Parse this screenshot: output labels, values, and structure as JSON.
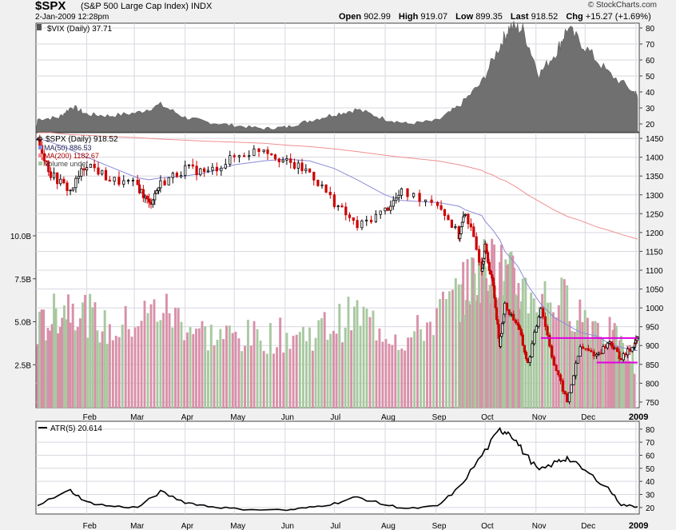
{
  "header": {
    "symbol": "$SPX",
    "description": "(S&P 500 Large Cap Index)",
    "exchange": "INDX",
    "datetime": "2-Jan-2009 12:28pm",
    "watermark": "© StockCharts.com",
    "open_label": "Open",
    "open": "902.99",
    "high_label": "High",
    "high": "919.07",
    "low_label": "Low",
    "low": "899.35",
    "last_label": "Last",
    "last": "918.52",
    "chg_label": "Chg",
    "chg": "+15.27 (+1.69%)"
  },
  "colors": {
    "up": "#000000",
    "down": "#cc0000",
    "ma50": "#8a8ad8",
    "ma200": "#f09090",
    "vol_up": "#a8c8a0",
    "vol_down": "#d890a8",
    "vix_fill": "#707070",
    "resistance": "#e000e0",
    "grid": "#d8d8e0",
    "plot_bg": "#ffffff"
  },
  "chart_data": [
    {
      "type": "area",
      "panel": "vix",
      "legend": "$VIX (Daily) 37.71",
      "y_ticks": [
        20,
        30,
        40,
        50,
        60,
        70,
        80
      ],
      "ylim": [
        15,
        83
      ],
      "x": [
        "2008-01-02",
        "2008-01-15",
        "2008-01-23",
        "2008-02-01",
        "2008-02-15",
        "2008-03-03",
        "2008-03-17",
        "2008-04-01",
        "2008-04-15",
        "2008-05-01",
        "2008-05-19",
        "2008-06-02",
        "2008-06-16",
        "2008-07-01",
        "2008-07-15",
        "2008-08-01",
        "2008-08-15",
        "2008-09-02",
        "2008-09-15",
        "2008-09-29",
        "2008-10-10",
        "2008-10-16",
        "2008-10-24",
        "2008-11-03",
        "2008-11-14",
        "2008-11-20",
        "2008-12-01",
        "2008-12-15",
        "2008-12-31",
        "2009-01-02"
      ],
      "values": [
        23,
        24,
        31,
        26,
        25,
        27,
        32,
        24,
        21,
        19,
        17,
        18,
        22,
        26,
        29,
        23,
        20,
        22,
        31,
        46,
        69,
        81,
        79,
        51,
        66,
        80,
        68,
        52,
        40,
        37.71
      ]
    },
    {
      "type": "line",
      "panel": "price",
      "legend": "$SPX (Daily) 918.52",
      "series": [
        {
          "name": "MA(50) 886.53",
          "kind": "ma50"
        },
        {
          "name": "MA(200) 1182.67",
          "kind": "ma200"
        },
        {
          "name": "Volume undef",
          "kind": "volume"
        }
      ],
      "y_ticks": [
        750,
        800,
        850,
        900,
        950,
        1000,
        1050,
        1100,
        1150,
        1200,
        1250,
        1300,
        1350,
        1400,
        1450
      ],
      "ylim": [
        735,
        1465
      ],
      "x_tick_labels": [
        "Feb",
        "Mar",
        "Apr",
        "May",
        "Jun",
        "Jul",
        "Aug",
        "Sep",
        "Oct",
        "Nov",
        "Dec",
        "2009"
      ],
      "x": [
        "2008-01-02",
        "2008-01-10",
        "2008-01-22",
        "2008-02-01",
        "2008-02-15",
        "2008-03-03",
        "2008-03-10",
        "2008-03-17",
        "2008-04-01",
        "2008-04-15",
        "2008-05-01",
        "2008-05-19",
        "2008-06-02",
        "2008-06-16",
        "2008-07-01",
        "2008-07-15",
        "2008-08-01",
        "2008-08-11",
        "2008-09-02",
        "2008-09-15",
        "2008-09-19",
        "2008-09-29",
        "2008-10-01",
        "2008-10-06",
        "2008-10-10",
        "2008-10-13",
        "2008-10-21",
        "2008-10-27",
        "2008-11-04",
        "2008-11-12",
        "2008-11-20",
        "2008-11-28",
        "2008-12-08",
        "2008-12-16",
        "2008-12-23",
        "2008-12-31",
        "2009-01-02"
      ],
      "close": [
        1447,
        1355,
        1310,
        1385,
        1340,
        1325,
        1275,
        1330,
        1370,
        1360,
        1400,
        1425,
        1385,
        1360,
        1280,
        1215,
        1260,
        1305,
        1280,
        1190,
        1255,
        1105,
        1160,
        1055,
        900,
        1005,
        955,
        850,
        1005,
        850,
        750,
        895,
        875,
        910,
        865,
        903,
        918.52
      ],
      "ma50": [
        1450,
        1440,
        1420,
        1400,
        1375,
        1345,
        1340,
        1345,
        1350,
        1360,
        1380,
        1390,
        1395,
        1390,
        1370,
        1340,
        1300,
        1285,
        1280,
        1270,
        1260,
        1245,
        1230,
        1205,
        1180,
        1150,
        1110,
        1060,
        1010,
        975,
        955,
        935,
        925,
        905,
        895,
        888,
        886.53
      ],
      "ma200": [
        1465,
        1465,
        1460,
        1458,
        1455,
        1452,
        1450,
        1448,
        1445,
        1442,
        1440,
        1437,
        1432,
        1428,
        1422,
        1415,
        1405,
        1400,
        1390,
        1380,
        1376,
        1365,
        1360,
        1352,
        1342,
        1338,
        1318,
        1300,
        1280,
        1260,
        1243,
        1232,
        1215,
        1205,
        1195,
        1185,
        1182.67
      ],
      "resistance": {
        "level": 920,
        "from": "2008-11-04",
        "to": "2009-01-02"
      },
      "support": {
        "level": 855,
        "from": "2008-12-08",
        "to": "2009-01-02"
      }
    },
    {
      "type": "bar",
      "panel": "volume",
      "y_tick_labels": [
        "2.5B",
        "5.0B",
        "7.5B",
        "10.0B"
      ],
      "y_ticks": [
        2.5,
        5.0,
        7.5,
        10.0
      ],
      "ylim": [
        0,
        16
      ],
      "x": [
        "2008-01-02",
        "2008-01-22",
        "2008-02-15",
        "2008-03-17",
        "2008-04-15",
        "2008-05-15",
        "2008-06-16",
        "2008-07-15",
        "2008-08-15",
        "2008-09-15",
        "2008-09-29",
        "2008-10-10",
        "2008-10-24",
        "2008-11-20",
        "2008-12-15",
        "2008-12-31"
      ],
      "values": [
        4.5,
        6.2,
        4.4,
        5.8,
        4.2,
        4.1,
        4.3,
        5.4,
        3.9,
        6.5,
        8.2,
        7.9,
        6.8,
        6.1,
        4.4,
        2.6
      ]
    },
    {
      "type": "line",
      "panel": "atr",
      "legend": "ATR(5) 20.614",
      "y_ticks": [
        20,
        30,
        40,
        50,
        60,
        70,
        80
      ],
      "ylim": [
        15,
        86
      ],
      "x": [
        "2008-01-02",
        "2008-01-22",
        "2008-02-01",
        "2008-02-15",
        "2008-03-03",
        "2008-03-17",
        "2008-04-01",
        "2008-04-15",
        "2008-05-01",
        "2008-06-02",
        "2008-06-16",
        "2008-07-01",
        "2008-07-15",
        "2008-08-01",
        "2008-08-15",
        "2008-09-02",
        "2008-09-15",
        "2008-09-29",
        "2008-10-10",
        "2008-10-16",
        "2008-10-24",
        "2008-11-03",
        "2008-11-14",
        "2008-11-20",
        "2008-12-01",
        "2008-12-15",
        "2008-12-23",
        "2009-01-02"
      ],
      "values": [
        22,
        33,
        24,
        21,
        20,
        32,
        24,
        21,
        19,
        18,
        20,
        23,
        28,
        22,
        19,
        21,
        35,
        60,
        79,
        78,
        63,
        48,
        55,
        58,
        48,
        35,
        22,
        20.614
      ]
    }
  ]
}
